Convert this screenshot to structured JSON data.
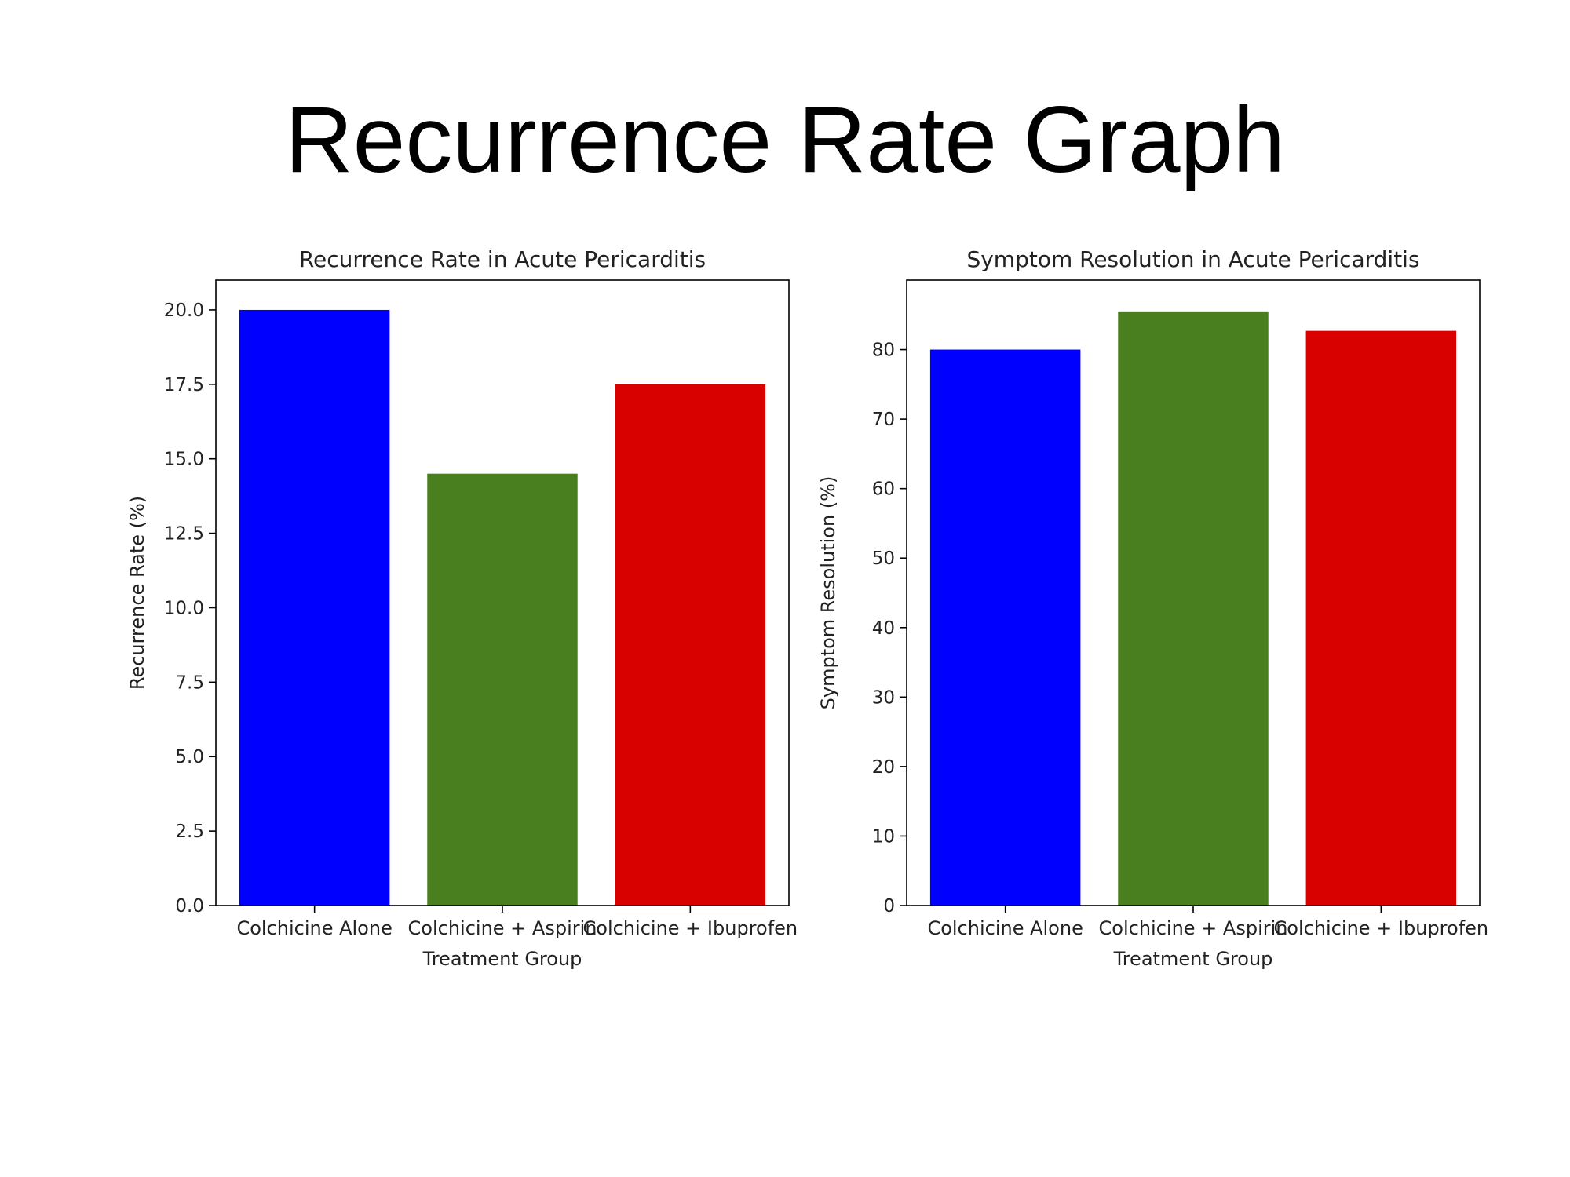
{
  "slide": {
    "title": "Recurrence Rate Graph"
  },
  "chart_data": [
    {
      "type": "bar",
      "title": "Recurrence Rate in Acute Pericarditis",
      "xlabel": "Treatment Group",
      "ylabel": "Recurrence Rate (%)",
      "categories": [
        "Colchicine Alone",
        "Colchicine + Aspirin",
        "Colchicine + Ibuprofen"
      ],
      "values": [
        20.0,
        14.5,
        17.5
      ],
      "colors": [
        "#0000ff",
        "#4a7f1f",
        "#d90000"
      ],
      "ylim": [
        0,
        21
      ],
      "yticks": [
        0,
        2.5,
        5,
        7.5,
        10,
        12.5,
        15,
        17.5,
        20
      ],
      "ytick_labels": [
        "0.0",
        "2.5",
        "5.0",
        "7.5",
        "10.0",
        "12.5",
        "15.0",
        "17.5",
        "20.0"
      ],
      "grid": false,
      "legend": "none"
    },
    {
      "type": "bar",
      "title": "Symptom Resolution in Acute Pericarditis",
      "xlabel": "Treatment Group",
      "ylabel": "Symptom Resolution (%)",
      "categories": [
        "Colchicine Alone",
        "Colchicine + Aspirin",
        "Colchicine + Ibuprofen"
      ],
      "values": [
        80,
        85.5,
        82.7
      ],
      "colors": [
        "#0000ff",
        "#4a7f1f",
        "#d90000"
      ],
      "ylim": [
        0,
        90
      ],
      "yticks": [
        0,
        10,
        20,
        30,
        40,
        50,
        60,
        70,
        80
      ],
      "ytick_labels": [
        "0",
        "10",
        "20",
        "30",
        "40",
        "50",
        "60",
        "70",
        "80"
      ],
      "grid": false,
      "legend": "none"
    }
  ]
}
